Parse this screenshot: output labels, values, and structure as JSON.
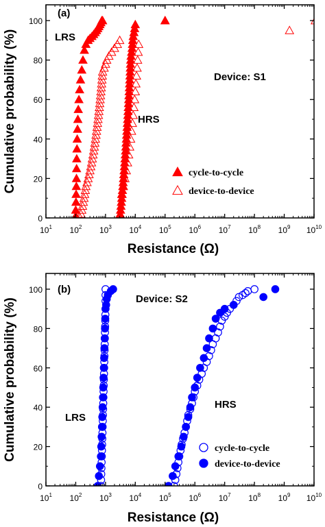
{
  "chart_data": [
    {
      "type": "scatter",
      "panel_label": "(a)",
      "device_label": "Device: S1",
      "xlabel": "Resistance (Ω)",
      "ylabel": "Cumulative probability (%)",
      "x_scale": "log",
      "xlim": [
        10,
        10000000000.0
      ],
      "ylim": [
        0,
        108
      ],
      "x_tick_exponents": [
        1,
        2,
        3,
        4,
        5,
        6,
        7,
        8,
        9,
        10
      ],
      "y_ticks": [
        0,
        20,
        40,
        60,
        80,
        100
      ],
      "annotations": [
        "LRS",
        "HRS"
      ],
      "series": [
        {
          "name": "cycle-to-cycle",
          "marker": "triangle",
          "fill": "filled",
          "color": "#ff0000",
          "x": [
            100,
            100,
            102,
            103,
            105,
            106,
            107,
            108,
            110,
            112,
            115,
            118,
            122,
            128,
            135,
            145,
            160,
            175,
            195,
            220,
            260,
            300,
            350,
            400,
            450,
            500,
            550,
            600,
            650,
            700,
            750,
            800,
            3000,
            3100,
            3200,
            3300,
            3400,
            3500,
            3600,
            3700,
            3800,
            3900,
            4000,
            4100,
            4200,
            4300,
            4400,
            4500,
            4600,
            4700,
            4800,
            4900,
            5000,
            5100,
            5200,
            5300,
            5400,
            5500,
            5600,
            5700,
            5800,
            5900,
            6000,
            6100,
            6200,
            6300,
            6400,
            6500,
            6600,
            6700,
            6800,
            6900,
            7000,
            7200,
            7500,
            7800,
            8000,
            8200,
            8500,
            9000,
            9500,
            10000,
            100000
          ],
          "y": [
            1,
            4,
            8,
            12,
            16,
            20,
            25,
            30,
            35,
            40,
            45,
            50,
            55,
            60,
            65,
            70,
            75,
            80,
            85,
            88,
            90,
            91,
            92,
            93,
            94,
            95,
            96,
            97,
            98,
            99,
            100,
            100,
            0,
            2,
            4,
            6,
            8,
            10,
            12,
            14,
            16,
            18,
            20,
            22,
            24,
            26,
            28,
            30,
            32,
            34,
            36,
            38,
            40,
            42,
            44,
            46,
            48,
            50,
            52,
            54,
            56,
            58,
            60,
            62,
            64,
            66,
            68,
            70,
            72,
            74,
            76,
            78,
            80,
            82,
            84,
            86,
            88,
            90,
            92,
            94,
            96,
            98,
            100
          ]
        },
        {
          "name": "device-to-device",
          "marker": "triangle",
          "fill": "open",
          "color": "#ff0000",
          "x": [
            140,
            150,
            160,
            170,
            180,
            190,
            200,
            210,
            220,
            240,
            260,
            280,
            300,
            320,
            340,
            360,
            380,
            400,
            420,
            440,
            460,
            480,
            500,
            520,
            540,
            560,
            580,
            600,
            620,
            640,
            660,
            680,
            700,
            720,
            740,
            760,
            780,
            800,
            900,
            1000,
            1100,
            1300,
            1600,
            2000,
            2500,
            3000,
            3500,
            4000,
            4500,
            5000,
            5500,
            6000,
            6500,
            7000,
            7500,
            8000,
            8500,
            9000,
            9500,
            10000,
            10500,
            11000,
            11500,
            12000,
            12500,
            13000,
            100000,
            1500000000.0,
            11000000000.0
          ],
          "y": [
            0,
            2,
            4,
            6,
            8,
            10,
            12,
            14,
            16,
            18,
            20,
            22,
            24,
            26,
            28,
            30,
            32,
            34,
            36,
            38,
            40,
            42,
            44,
            46,
            48,
            50,
            52,
            54,
            56,
            58,
            60,
            62,
            64,
            66,
            68,
            70,
            72,
            74,
            76,
            78,
            80,
            82,
            84,
            86,
            88,
            90,
            12,
            16,
            20,
            24,
            28,
            32,
            36,
            40,
            44,
            48,
            52,
            56,
            60,
            64,
            68,
            72,
            76,
            80,
            84,
            88,
            100,
            95,
            100
          ]
        }
      ]
    },
    {
      "type": "scatter",
      "panel_label": "(b)",
      "device_label": "Device: S2",
      "xlabel": "Resistance (Ω)",
      "ylabel": "Cumulative probability (%)",
      "x_scale": "log",
      "xlim": [
        10,
        10000000000.0
      ],
      "ylim": [
        0,
        108
      ],
      "x_tick_exponents": [
        1,
        2,
        3,
        4,
        5,
        6,
        7,
        8,
        9,
        10
      ],
      "y_ticks": [
        0,
        20,
        40,
        60,
        80,
        100
      ],
      "annotations": [
        "LRS",
        "HRS"
      ],
      "series": [
        {
          "name": "cycle-to-cycle",
          "marker": "circle",
          "fill": "open",
          "color": "#0000ff",
          "x": [
            700,
            710,
            720,
            730,
            740,
            750,
            760,
            770,
            780,
            790,
            800,
            810,
            820,
            830,
            840,
            850,
            860,
            870,
            880,
            890,
            900,
            910,
            920,
            930,
            940,
            950,
            960,
            970,
            980,
            990,
            1000,
            1000,
            1000,
            1000,
            200000,
            220000,
            240000,
            260000,
            280000,
            300000,
            330000,
            360000,
            400000,
            450000,
            500000,
            550000,
            600000,
            700000,
            800000,
            900000,
            1000000,
            1200000,
            1400000,
            1700000,
            2000000,
            2500000,
            3000000,
            3500000,
            4000000,
            5000000,
            6000000,
            7000000,
            8000000,
            10000000,
            12000000,
            15000000,
            20000000,
            25000000,
            30000000,
            40000000,
            50000000,
            60000000,
            100000000
          ],
          "y": [
            0,
            3,
            6,
            9,
            12,
            15,
            18,
            21,
            24,
            27,
            30,
            33,
            36,
            39,
            42,
            45,
            48,
            51,
            54,
            57,
            60,
            63,
            66,
            69,
            72,
            75,
            78,
            81,
            84,
            87,
            90,
            94,
            97,
            100,
            0,
            3,
            6,
            9,
            12,
            15,
            18,
            21,
            24,
            27,
            30,
            33,
            36,
            39,
            42,
            45,
            48,
            51,
            54,
            57,
            60,
            63,
            66,
            69,
            72,
            75,
            78,
            81,
            84,
            86,
            88,
            90,
            92,
            94,
            96,
            97,
            98,
            99,
            100
          ]
        },
        {
          "name": "device-to-device",
          "marker": "circle",
          "fill": "filled",
          "color": "#0000ff",
          "x": [
            550,
            600,
            650,
            700,
            720,
            740,
            760,
            780,
            800,
            820,
            840,
            860,
            880,
            900,
            920,
            940,
            960,
            980,
            1000,
            1050,
            1100,
            1200,
            1500,
            1800,
            130000,
            180000,
            220000,
            280000,
            350000,
            420000,
            500000,
            600000,
            700000,
            800000,
            1000000,
            1200000,
            1500000,
            2000000,
            2500000,
            3000000,
            4000000,
            5000000,
            7000000,
            10000000,
            20000000,
            200000000,
            500000000
          ],
          "y": [
            0,
            5,
            10,
            15,
            20,
            25,
            30,
            35,
            40,
            45,
            50,
            55,
            60,
            65,
            70,
            75,
            80,
            85,
            90,
            92,
            95,
            97,
            99,
            100,
            0,
            5,
            10,
            15,
            20,
            25,
            30,
            35,
            40,
            45,
            50,
            55,
            60,
            65,
            70,
            75,
            80,
            85,
            88,
            90,
            92,
            96,
            100
          ]
        }
      ]
    }
  ]
}
